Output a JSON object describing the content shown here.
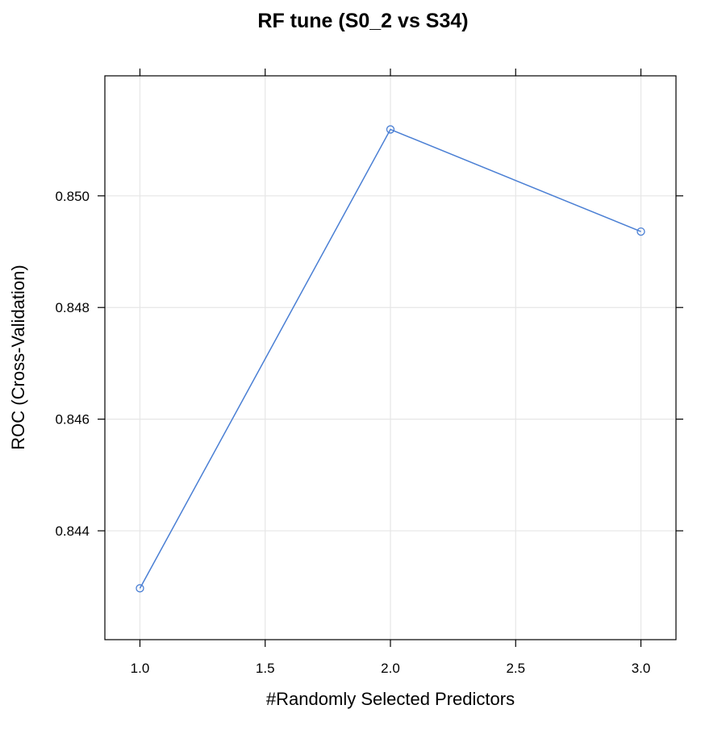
{
  "chart_data": {
    "type": "line",
    "title": "RF tune (S0_2 vs S34)",
    "xlabel": "#Randomly Selected Predictors",
    "ylabel": "ROC (Cross-Validation)",
    "xlim": [
      0.86,
      3.14
    ],
    "ylim": [
      0.84205,
      0.85215
    ],
    "x_ticks": [
      1.0,
      1.5,
      2.0,
      2.5,
      3.0
    ],
    "x_tick_labels": [
      "1.0",
      "1.5",
      "2.0",
      "2.5",
      "3.0"
    ],
    "y_ticks": [
      0.844,
      0.846,
      0.848,
      0.85
    ],
    "y_tick_labels": [
      "0.844",
      "0.846",
      "0.848",
      "0.850"
    ],
    "grid": true,
    "series": [
      {
        "color": "#4a7fd4",
        "marker": "open-circle",
        "x": [
          1,
          2,
          3
        ],
        "y": [
          0.84297,
          0.85119,
          0.84936
        ]
      }
    ]
  }
}
